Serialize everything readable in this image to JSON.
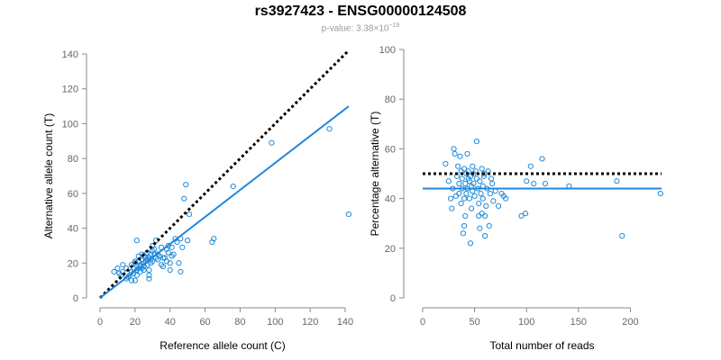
{
  "header": {
    "title": "rs3927423 - ENSG00000124508",
    "pvalue_label": "p-value: 3.38×10",
    "pvalue_exponent": "−19"
  },
  "colors": {
    "points": "#1f8ad8",
    "fit": "#1f87e0",
    "reference": "#000000"
  },
  "chart_data": [
    {
      "type": "scatter",
      "xlabel": "Reference allele count (C)",
      "ylabel": "Alternative allele count (T)",
      "xlim": [
        0,
        140
      ],
      "ylim": [
        0,
        140
      ],
      "xticks": [
        0,
        20,
        40,
        60,
        80,
        100,
        120,
        140
      ],
      "yticks": [
        0,
        20,
        40,
        60,
        80,
        100,
        120,
        140
      ],
      "reference_line": {
        "style": "dotted",
        "from": [
          0,
          0
        ],
        "to": [
          142,
          142
        ]
      },
      "fit_line": {
        "from": [
          0,
          0
        ],
        "to": [
          142,
          110
        ]
      },
      "points": [
        [
          8,
          15
        ],
        [
          10,
          17
        ],
        [
          11,
          14
        ],
        [
          12,
          13
        ],
        [
          13,
          15
        ],
        [
          13,
          19
        ],
        [
          15,
          11
        ],
        [
          15,
          17
        ],
        [
          16,
          12
        ],
        [
          17,
          13
        ],
        [
          18,
          15
        ],
        [
          18,
          19
        ],
        [
          18,
          10
        ],
        [
          19,
          14
        ],
        [
          19,
          17
        ],
        [
          20,
          10
        ],
        [
          20,
          20
        ],
        [
          21,
          16
        ],
        [
          21,
          13
        ],
        [
          21,
          33
        ],
        [
          22,
          17
        ],
        [
          22,
          21
        ],
        [
          23,
          15
        ],
        [
          23,
          19
        ],
        [
          24,
          17
        ],
        [
          24,
          22
        ],
        [
          24,
          25
        ],
        [
          25,
          20
        ],
        [
          25,
          18
        ],
        [
          25,
          16
        ],
        [
          26,
          21
        ],
        [
          26,
          23
        ],
        [
          27,
          19
        ],
        [
          27,
          22
        ],
        [
          27,
          26
        ],
        [
          28,
          13
        ],
        [
          28,
          11
        ],
        [
          28,
          16
        ],
        [
          29,
          22
        ],
        [
          29,
          20
        ],
        [
          29,
          25
        ],
        [
          30,
          30
        ],
        [
          30,
          27
        ],
        [
          31,
          25
        ],
        [
          31,
          28
        ],
        [
          32,
          33
        ],
        [
          33,
          22
        ],
        [
          34,
          24
        ],
        [
          35,
          29
        ],
        [
          35,
          19
        ],
        [
          36,
          18
        ],
        [
          37,
          23
        ],
        [
          38,
          21
        ],
        [
          38,
          28
        ],
        [
          39,
          26
        ],
        [
          40,
          20
        ],
        [
          40,
          16
        ],
        [
          41,
          24
        ],
        [
          42,
          25
        ],
        [
          43,
          34
        ],
        [
          44,
          32
        ],
        [
          45,
          20
        ],
        [
          46,
          15
        ],
        [
          46,
          34
        ],
        [
          47,
          29
        ],
        [
          48,
          57
        ],
        [
          49,
          65
        ],
        [
          50,
          33
        ],
        [
          51,
          48
        ],
        [
          64,
          32
        ],
        [
          65,
          34
        ],
        [
          76,
          64
        ],
        [
          98,
          89
        ],
        [
          131,
          97
        ],
        [
          142,
          48
        ],
        [
          20,
          21
        ],
        [
          22,
          24
        ],
        [
          23,
          18
        ],
        [
          25,
          24
        ],
        [
          28,
          23
        ],
        [
          30,
          21
        ],
        [
          32,
          23
        ],
        [
          33,
          25
        ],
        [
          36,
          23
        ],
        [
          39,
          30
        ],
        [
          41,
          29
        ]
      ]
    },
    {
      "type": "scatter",
      "xlabel": "Total number of reads",
      "ylabel": "Percentage alternative (T)",
      "xlim": [
        0,
        230
      ],
      "ylim": [
        0,
        100
      ],
      "xticks": [
        0,
        50,
        100,
        150,
        200
      ],
      "yticks": [
        0,
        20,
        40,
        60,
        80,
        100
      ],
      "reference_line": {
        "style": "dotted",
        "y": 50
      },
      "fit_line": {
        "y": 44
      },
      "points": [
        [
          22,
          54
        ],
        [
          25,
          47
        ],
        [
          27,
          40
        ],
        [
          28,
          36
        ],
        [
          29,
          44
        ],
        [
          30,
          60
        ],
        [
          31,
          58
        ],
        [
          32,
          41
        ],
        [
          33,
          49
        ],
        [
          34,
          53
        ],
        [
          35,
          46
        ],
        [
          35,
          42
        ],
        [
          36,
          57
        ],
        [
          37,
          51
        ],
        [
          37,
          38
        ],
        [
          38,
          44
        ],
        [
          38,
          48
        ],
        [
          39,
          26
        ],
        [
          40,
          29
        ],
        [
          40,
          52
        ],
        [
          40,
          40
        ],
        [
          41,
          46
        ],
        [
          41,
          33
        ],
        [
          42,
          50
        ],
        [
          42,
          42
        ],
        [
          43,
          44
        ],
        [
          43,
          58
        ],
        [
          44,
          48
        ],
        [
          44,
          51
        ],
        [
          45,
          47
        ],
        [
          45,
          40
        ],
        [
          46,
          49
        ],
        [
          46,
          22
        ],
        [
          47,
          45
        ],
        [
          47,
          36
        ],
        [
          48,
          53
        ],
        [
          48,
          43
        ],
        [
          49,
          46
        ],
        [
          49,
          50
        ],
        [
          50,
          41
        ],
        [
          51,
          51
        ],
        [
          52,
          48
        ],
        [
          52,
          63
        ],
        [
          53,
          44
        ],
        [
          54,
          38
        ],
        [
          54,
          33
        ],
        [
          55,
          47
        ],
        [
          55,
          28
        ],
        [
          56,
          42
        ],
        [
          57,
          52
        ],
        [
          57,
          34
        ],
        [
          58,
          40
        ],
        [
          58,
          45
        ],
        [
          59,
          50
        ],
        [
          59,
          49
        ],
        [
          60,
          25
        ],
        [
          60,
          33
        ],
        [
          61,
          37
        ],
        [
          62,
          44
        ],
        [
          63,
          51
        ],
        [
          64,
          29
        ],
        [
          65,
          42
        ],
        [
          66,
          48
        ],
        [
          67,
          46
        ],
        [
          68,
          39
        ],
        [
          70,
          43
        ],
        [
          73,
          37
        ],
        [
          76,
          42
        ],
        [
          78,
          41
        ],
        [
          80,
          40
        ],
        [
          95,
          33
        ],
        [
          99,
          34
        ],
        [
          100,
          47
        ],
        [
          104,
          53
        ],
        [
          107,
          46
        ],
        [
          115,
          56
        ],
        [
          118,
          46
        ],
        [
          141,
          45
        ],
        [
          187,
          47
        ],
        [
          192,
          25
        ],
        [
          229,
          42
        ]
      ]
    }
  ]
}
